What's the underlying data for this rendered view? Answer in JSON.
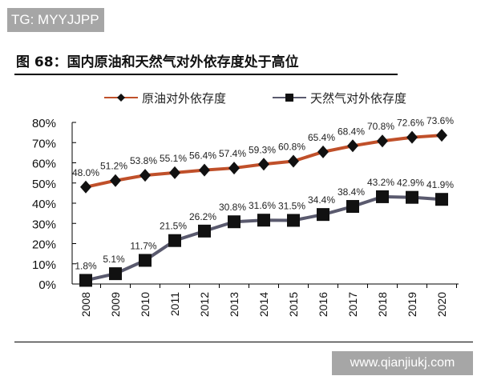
{
  "watermark_top": "TG: MYYJJPP",
  "watermark_bottom": "www.qianjiukj.com",
  "chart_data": {
    "type": "line",
    "title": "图 68：国内原油和天然气对外依存度处于高位",
    "categories": [
      "2008",
      "2009",
      "2010",
      "2011",
      "2012",
      "2013",
      "2014",
      "2015",
      "2016",
      "2017",
      "2018",
      "2019",
      "2020"
    ],
    "series": [
      {
        "name": "原油对外依存度",
        "color": "#c0502a",
        "marker": "diamond",
        "values": [
          48.0,
          51.2,
          53.8,
          55.1,
          56.4,
          57.4,
          59.3,
          60.8,
          65.4,
          68.4,
          70.8,
          72.6,
          73.6
        ]
      },
      {
        "name": "天然气对外依存度",
        "color": "#5a5a6e",
        "marker": "square",
        "values": [
          1.8,
          5.1,
          11.7,
          21.5,
          26.2,
          30.8,
          31.6,
          31.5,
          34.4,
          38.4,
          43.2,
          42.9,
          41.9
        ]
      }
    ],
    "yticks": [
      "0%",
      "10%",
      "20%",
      "30%",
      "40%",
      "50%",
      "60%",
      "70%",
      "80%"
    ],
    "ylim": [
      0,
      80
    ],
    "legend": "top",
    "grid": false
  }
}
